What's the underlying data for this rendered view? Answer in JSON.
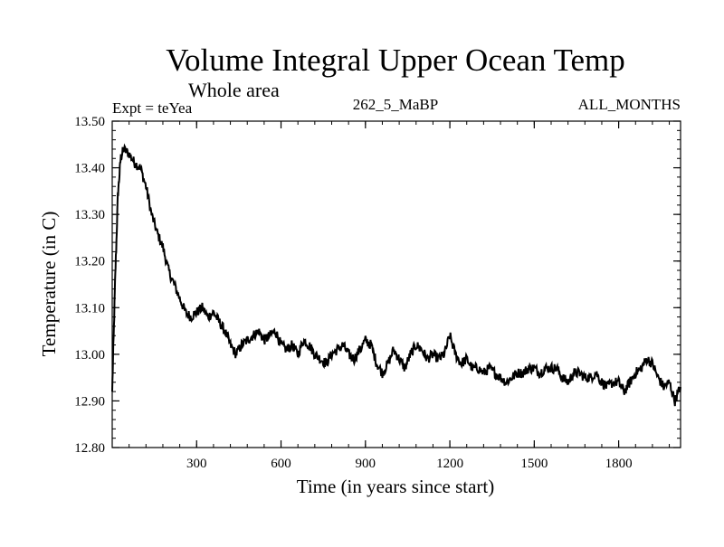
{
  "chart_data": {
    "type": "line",
    "title": "Volume Integral Upper Ocean Temp",
    "subtitle": "Whole area",
    "experiment_label": "Expt = teYea",
    "run_label": "262_5_MaBP",
    "months_label": "ALL_MONTHS",
    "xlabel": "Time (in years since start)",
    "ylabel": "Temperature (in C)",
    "xlim": [
      0,
      2020
    ],
    "ylim": [
      12.8,
      13.5
    ],
    "x_ticks": [
      300,
      600,
      900,
      1200,
      1500,
      1800
    ],
    "x_tick_labels": [
      "300",
      "600",
      "900",
      "1200",
      "1500",
      "1800"
    ],
    "y_ticks": [
      12.8,
      12.9,
      13.0,
      13.1,
      13.2,
      13.3,
      13.4,
      13.5
    ],
    "y_tick_labels": [
      "12.80",
      "12.90",
      "13.00",
      "13.10",
      "13.20",
      "13.30",
      "13.40",
      "13.50"
    ],
    "grid": false,
    "series": [
      {
        "name": "Volume integral upper ocean temperature",
        "x": [
          0,
          10,
          20,
          30,
          40,
          60,
          80,
          100,
          120,
          140,
          160,
          180,
          200,
          220,
          240,
          260,
          280,
          300,
          320,
          340,
          360,
          380,
          400,
          420,
          440,
          460,
          480,
          500,
          520,
          540,
          560,
          580,
          600,
          620,
          640,
          660,
          680,
          700,
          720,
          740,
          760,
          780,
          800,
          820,
          840,
          860,
          880,
          900,
          920,
          940,
          960,
          980,
          1000,
          1020,
          1040,
          1060,
          1080,
          1100,
          1120,
          1140,
          1160,
          1180,
          1200,
          1220,
          1240,
          1260,
          1280,
          1300,
          1320,
          1340,
          1360,
          1380,
          1400,
          1420,
          1440,
          1460,
          1480,
          1500,
          1520,
          1540,
          1560,
          1580,
          1600,
          1620,
          1640,
          1660,
          1680,
          1700,
          1720,
          1740,
          1760,
          1780,
          1800,
          1820,
          1840,
          1860,
          1880,
          1900,
          1920,
          1940,
          1960,
          1980,
          2000,
          2020
        ],
        "values": [
          12.92,
          13.15,
          13.34,
          13.42,
          13.44,
          13.43,
          13.41,
          13.4,
          13.36,
          13.3,
          13.26,
          13.23,
          13.18,
          13.15,
          13.12,
          13.09,
          13.08,
          13.09,
          13.1,
          13.08,
          13.09,
          13.07,
          13.05,
          13.02,
          13.0,
          13.02,
          13.03,
          13.04,
          13.05,
          13.03,
          13.04,
          13.05,
          13.02,
          13.01,
          13.02,
          13.0,
          13.03,
          13.02,
          13.0,
          12.99,
          12.98,
          13.0,
          13.01,
          13.02,
          13.0,
          12.99,
          13.01,
          13.03,
          13.02,
          12.98,
          12.96,
          12.98,
          13.01,
          12.99,
          12.97,
          13.0,
          13.02,
          13.01,
          12.99,
          13.0,
          12.99,
          13.0,
          13.04,
          13.0,
          12.98,
          12.99,
          12.97,
          12.97,
          12.96,
          12.97,
          12.96,
          12.95,
          12.94,
          12.95,
          12.96,
          12.96,
          12.97,
          12.97,
          12.96,
          12.97,
          12.97,
          12.97,
          12.95,
          12.94,
          12.96,
          12.96,
          12.95,
          12.95,
          12.96,
          12.94,
          12.93,
          12.94,
          12.94,
          12.92,
          12.94,
          12.96,
          12.97,
          12.99,
          12.98,
          12.95,
          12.93,
          12.94,
          12.9,
          12.93
        ]
      }
    ]
  }
}
